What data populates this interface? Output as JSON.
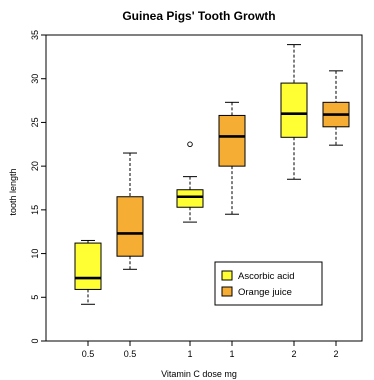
{
  "chart_data": {
    "type": "boxplot",
    "title": "Guinea Pigs' Tooth Growth",
    "xlabel": "Vitamin C dose mg",
    "ylabel": "tooth length",
    "ylim": [
      0,
      35
    ],
    "yticks": [
      0,
      5,
      10,
      15,
      20,
      25,
      30,
      35
    ],
    "grid": false,
    "legend_position": "bottom-right",
    "categories": [
      "0.5",
      "0.5",
      "1",
      "1",
      "2",
      "2"
    ],
    "series": [
      {
        "name": "Ascorbic acid",
        "color": "#ffff33",
        "boxes": [
          {
            "dose": "0.5",
            "min": 4.2,
            "q1": 5.9,
            "median": 7.2,
            "q3": 11.2,
            "max": 11.5,
            "outliers": []
          },
          {
            "dose": "1",
            "min": 13.6,
            "q1": 15.3,
            "median": 16.5,
            "q3": 17.3,
            "max": 18.8,
            "outliers": [
              22.5
            ]
          },
          {
            "dose": "2",
            "min": 18.5,
            "q1": 23.3,
            "median": 26.0,
            "q3": 29.5,
            "max": 33.9,
            "outliers": []
          }
        ]
      },
      {
        "name": "Orange juice",
        "color": "#f5ad33",
        "boxes": [
          {
            "dose": "0.5",
            "min": 8.2,
            "q1": 9.7,
            "median": 12.3,
            "q3": 16.5,
            "max": 21.5,
            "outliers": []
          },
          {
            "dose": "1",
            "min": 14.5,
            "q1": 20.0,
            "median": 23.4,
            "q3": 25.8,
            "max": 27.3,
            "outliers": []
          },
          {
            "dose": "2",
            "min": 22.4,
            "q1": 24.5,
            "median": 25.9,
            "q3": 27.3,
            "max": 30.9,
            "outliers": []
          }
        ]
      }
    ]
  }
}
